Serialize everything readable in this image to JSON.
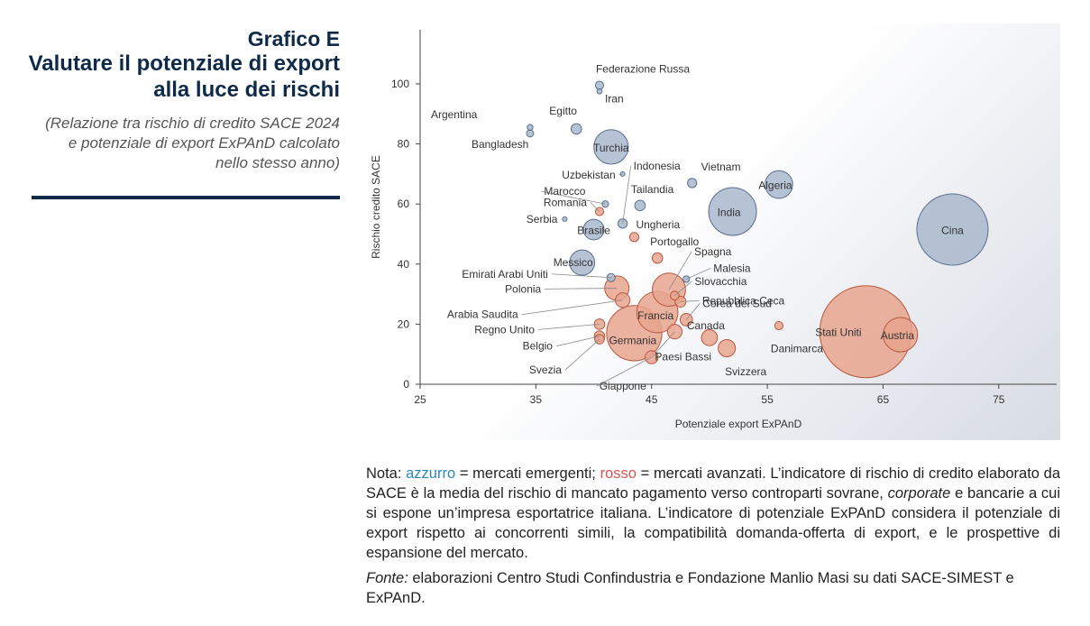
{
  "header": {
    "label": "Grafico E",
    "title_lines": [
      "Valutare il potenziale di export",
      "alla luce dei rischi"
    ],
    "subtitle_lines": [
      "(Relazione tra rischio di credito SACE 2024",
      "e potenziale di export ExPAnD calcolato",
      "nello stesso anno)"
    ]
  },
  "chart_data": {
    "type": "scatter",
    "subtype": "bubble",
    "xlabel": "Potenziale export ExPAnD",
    "ylabel": "Rischio credito SACE",
    "xlim": [
      25,
      80
    ],
    "ylim": [
      0,
      118
    ],
    "xticks": [
      25,
      35,
      45,
      55,
      65,
      75
    ],
    "yticks": [
      0,
      20,
      40,
      60,
      80,
      100
    ],
    "grid": false,
    "colors": {
      "emergenti_fill": "#a9b8cc",
      "emergenti_stroke": "#5a6f8c",
      "avanzati_fill": "#e8a48e",
      "avanzati_stroke": "#b8583f",
      "axis": "#444444",
      "leader": "#8a8a8a"
    },
    "points": [
      {
        "name": "Federazione Russa",
        "group": "emergenti",
        "x": 40.5,
        "y": 99.5,
        "size": 0.8
      },
      {
        "name": "Iran",
        "group": "emergenti",
        "x": 40.5,
        "y": 97.5,
        "size": 0.3
      },
      {
        "name": "Argentina",
        "group": "emergenti",
        "x": 34.5,
        "y": 85.5,
        "size": 0.4
      },
      {
        "name": "Bangladesh",
        "group": "emergenti",
        "x": 34.5,
        "y": 83.5,
        "size": 0.6
      },
      {
        "name": "Egitto",
        "group": "emergenti",
        "x": 38.5,
        "y": 85,
        "size": 1.3
      },
      {
        "name": "Turchia",
        "group": "emergenti",
        "x": 41.5,
        "y": 79,
        "size": 14
      },
      {
        "name": "Uzbekistan",
        "group": "emergenti",
        "x": 42.5,
        "y": 70,
        "size": 0.1
      },
      {
        "name": "Vietnam",
        "group": "emergenti",
        "x": 48.5,
        "y": 67,
        "size": 1.0
      },
      {
        "name": "Algeria",
        "group": "emergenti",
        "x": 56,
        "y": 66.5,
        "size": 9
      },
      {
        "name": "Marocco",
        "group": "emergenti",
        "x": 41,
        "y": 60,
        "size": 0.5
      },
      {
        "name": "Tailandia",
        "group": "emergenti",
        "x": 44,
        "y": 59.5,
        "size": 1.3
      },
      {
        "name": "India",
        "group": "emergenti",
        "x": 52,
        "y": 57.5,
        "size": 27
      },
      {
        "name": "Serbia",
        "group": "emergenti",
        "x": 37.5,
        "y": 55,
        "size": 0.15
      },
      {
        "name": "Indonesia",
        "group": "emergenti",
        "x": 42.5,
        "y": 53.5,
        "size": 1.0
      },
      {
        "name": "Brasile",
        "group": "emergenti",
        "x": 40,
        "y": 51.5,
        "size": 5
      },
      {
        "name": "Cina",
        "group": "emergenti",
        "x": 71,
        "y": 51.5,
        "size": 60
      },
      {
        "name": "Messico",
        "group": "emergenti",
        "x": 39,
        "y": 40.5,
        "size": 7.5
      },
      {
        "name": "Malesia",
        "group": "emergenti",
        "x": 48,
        "y": 35,
        "size": 0.5
      },
      {
        "name": "Emirati Arabi Uniti",
        "group": "emergenti",
        "x": 41.5,
        "y": 35.5,
        "size": 0.8
      },
      {
        "name": "Romania",
        "group": "avanzati",
        "x": 40.5,
        "y": 57.5,
        "size": 0.8
      },
      {
        "name": "Ungheria",
        "group": "avanzati",
        "x": 43.5,
        "y": 49,
        "size": 1.0
      },
      {
        "name": "Portogallo",
        "group": "avanzati",
        "x": 45.5,
        "y": 42,
        "size": 1.3
      },
      {
        "name": "Spagna",
        "group": "avanzati",
        "x": 46.5,
        "y": 31.5,
        "size": 13
      },
      {
        "name": "Polonia",
        "group": "avanzati",
        "x": 42,
        "y": 32,
        "size": 7
      },
      {
        "name": "Slovacchia",
        "group": "avanzati",
        "x": 47,
        "y": 29.5,
        "size": 0.9
      },
      {
        "name": "Arabia Saudita",
        "group": "avanzati",
        "x": 42.5,
        "y": 28,
        "size": 2.5
      },
      {
        "name": "Repubblica Ceca",
        "group": "avanzati",
        "x": 47.5,
        "y": 27.5,
        "size": 1.4
      },
      {
        "name": "Francia",
        "group": "avanzati",
        "x": 45.5,
        "y": 24,
        "size": 20
      },
      {
        "name": "Corea del Sud",
        "group": "avanzati",
        "x": 48,
        "y": 21.5,
        "size": 1.8
      },
      {
        "name": "Canada",
        "group": "avanzati",
        "x": 56,
        "y": 19.5,
        "size": 0.8
      },
      {
        "name": "Regno Unito",
        "group": "avanzati",
        "x": 40.5,
        "y": 20,
        "size": 1.3
      },
      {
        "name": "Germania",
        "group": "avanzati",
        "x": 43.5,
        "y": 17,
        "size": 36
      },
      {
        "name": "Paesi Bassi",
        "group": "avanzati",
        "x": 47,
        "y": 17.5,
        "size": 2.5
      },
      {
        "name": "Danimarca",
        "group": "avanzati",
        "x": 50,
        "y": 15.5,
        "size": 3
      },
      {
        "name": "Stati Uniti",
        "group": "avanzati",
        "x": 63.5,
        "y": 17.5,
        "size": 100
      },
      {
        "name": "Austria",
        "group": "avanzati",
        "x": 66.5,
        "y": 16.5,
        "size": 14
      },
      {
        "name": "Belgio",
        "group": "avanzati",
        "x": 40.5,
        "y": 16,
        "size": 1.3
      },
      {
        "name": "Svezia",
        "group": "avanzati",
        "x": 40.5,
        "y": 15,
        "size": 1.1
      },
      {
        "name": "Svizzera",
        "group": "avanzati",
        "x": 51.5,
        "y": 12,
        "size": 3.5
      },
      {
        "name": "Giappone",
        "group": "avanzati",
        "x": 45,
        "y": 9,
        "size": 2
      }
    ]
  },
  "notes": {
    "nota_label": "Nota:",
    "azzurro": "azzurro",
    "part1": "= mercati emergenti;",
    "rosso": "rosso",
    "part2": "= mercati avanzati. L’indicatore di rischio di credito elaborato da SACE è la media del rischio di mancato pagamento verso controparti sovrane,",
    "corporate": "corporate",
    "part3": "e bancarie a cui si espone un’impresa esportatrice italiana. L’indicatore di potenziale ExPAnD considera il potenziale di export rispetto ai concorrenti simili, la compatibilità domanda-offerta di export, e le prospettive di espansione del mercato.",
    "fonte_label": "Fonte:",
    "fonte_text": "elaborazioni Centro Studi Confindustria e Fondazione Manlio Masi su dati SACE-SIMEST e ExPAnD."
  }
}
